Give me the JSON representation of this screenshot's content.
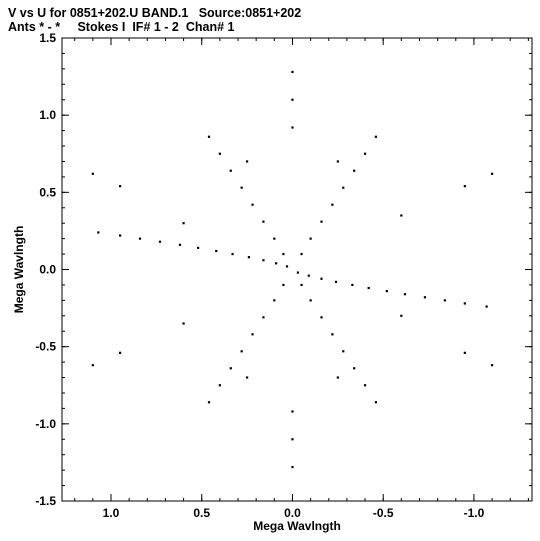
{
  "header": {
    "line1": "V vs U for 0851+202.U BAND.1   Source:0851+202",
    "line2": "Ants * - *     Stokes I  IF# 1 - 2  Chan# 1"
  },
  "chart_data": {
    "type": "scatter",
    "title": "V vs U for 0851+202.U BAND.1   Source:0851+202",
    "subtitle": "Ants * - *     Stokes I  IF# 1 - 2  Chan# 1",
    "xlabel": "Mega Wavlngth",
    "ylabel": "Mega Wavlngth",
    "xlim": [
      1.27,
      -1.32
    ],
    "ylim": [
      -1.5,
      1.5
    ],
    "x_reversed": true,
    "xticks": [
      1.0,
      0.5,
      0.0,
      -0.5,
      -1.0
    ],
    "xtick_labels": [
      "1.0",
      "0.5",
      "0.0",
      "-0.5",
      "-1.0"
    ],
    "yticks": [
      1.5,
      1.0,
      0.5,
      0.0,
      -0.5,
      -1.0,
      -1.5
    ],
    "ytick_labels": [
      "1.5",
      "1.0",
      "0.5",
      "0.0",
      "-0.5",
      "-1.0",
      "-1.5"
    ],
    "grid": false,
    "legend": "none",
    "marker_color": "#000000",
    "series": [
      {
        "points": [
          [
            0.03,
            0.02
          ],
          [
            0.09,
            0.04
          ],
          [
            0.16,
            0.06
          ],
          [
            0.24,
            0.08
          ],
          [
            0.33,
            0.1
          ],
          [
            0.42,
            0.12
          ],
          [
            0.52,
            0.14
          ],
          [
            0.62,
            0.16
          ],
          [
            0.73,
            0.18
          ],
          [
            0.84,
            0.2
          ],
          [
            0.95,
            0.22
          ],
          [
            1.07,
            0.24
          ],
          [
            -0.03,
            -0.02
          ],
          [
            -0.09,
            -0.04
          ],
          [
            -0.16,
            -0.06
          ],
          [
            -0.24,
            -0.08
          ],
          [
            -0.33,
            -0.1
          ],
          [
            -0.42,
            -0.12
          ],
          [
            -0.52,
            -0.14
          ],
          [
            -0.62,
            -0.16
          ],
          [
            -0.73,
            -0.18
          ],
          [
            -0.84,
            -0.2
          ],
          [
            -0.95,
            -0.22
          ],
          [
            -1.07,
            -0.24
          ],
          [
            0.05,
            0.1
          ],
          [
            0.1,
            0.2
          ],
          [
            0.16,
            0.31
          ],
          [
            0.22,
            0.42
          ],
          [
            0.28,
            0.53
          ],
          [
            0.34,
            0.64
          ],
          [
            0.4,
            0.75
          ],
          [
            0.46,
            0.86
          ],
          [
            -0.05,
            -0.1
          ],
          [
            -0.1,
            -0.2
          ],
          [
            -0.16,
            -0.31
          ],
          [
            -0.22,
            -0.42
          ],
          [
            -0.28,
            -0.53
          ],
          [
            -0.34,
            -0.64
          ],
          [
            -0.4,
            -0.75
          ],
          [
            -0.46,
            -0.86
          ],
          [
            -0.05,
            0.1
          ],
          [
            -0.1,
            0.2
          ],
          [
            -0.16,
            0.31
          ],
          [
            -0.22,
            0.42
          ],
          [
            -0.28,
            0.53
          ],
          [
            -0.34,
            0.64
          ],
          [
            -0.4,
            0.75
          ],
          [
            -0.46,
            0.86
          ],
          [
            0.05,
            -0.1
          ],
          [
            0.1,
            -0.2
          ],
          [
            0.16,
            -0.31
          ],
          [
            0.22,
            -0.42
          ],
          [
            0.28,
            -0.53
          ],
          [
            0.34,
            -0.64
          ],
          [
            0.4,
            -0.75
          ],
          [
            0.46,
            -0.86
          ],
          [
            0.0,
            1.28
          ],
          [
            0.0,
            1.1
          ],
          [
            0.0,
            0.92
          ],
          [
            0.0,
            -1.28
          ],
          [
            0.0,
            -1.1
          ],
          [
            0.0,
            -0.92
          ],
          [
            1.1,
            0.62
          ],
          [
            0.95,
            0.54
          ],
          [
            -1.1,
            -0.62
          ],
          [
            -0.95,
            -0.54
          ],
          [
            1.1,
            -0.62
          ],
          [
            0.95,
            -0.54
          ],
          [
            -1.1,
            0.62
          ],
          [
            -0.95,
            0.54
          ],
          [
            0.6,
            0.3
          ],
          [
            -0.6,
            -0.3
          ],
          [
            0.6,
            -0.35
          ],
          [
            -0.6,
            0.35
          ],
          [
            0.25,
            0.7
          ],
          [
            -0.25,
            -0.7
          ],
          [
            0.25,
            -0.7
          ],
          [
            -0.25,
            0.7
          ]
        ]
      }
    ]
  }
}
